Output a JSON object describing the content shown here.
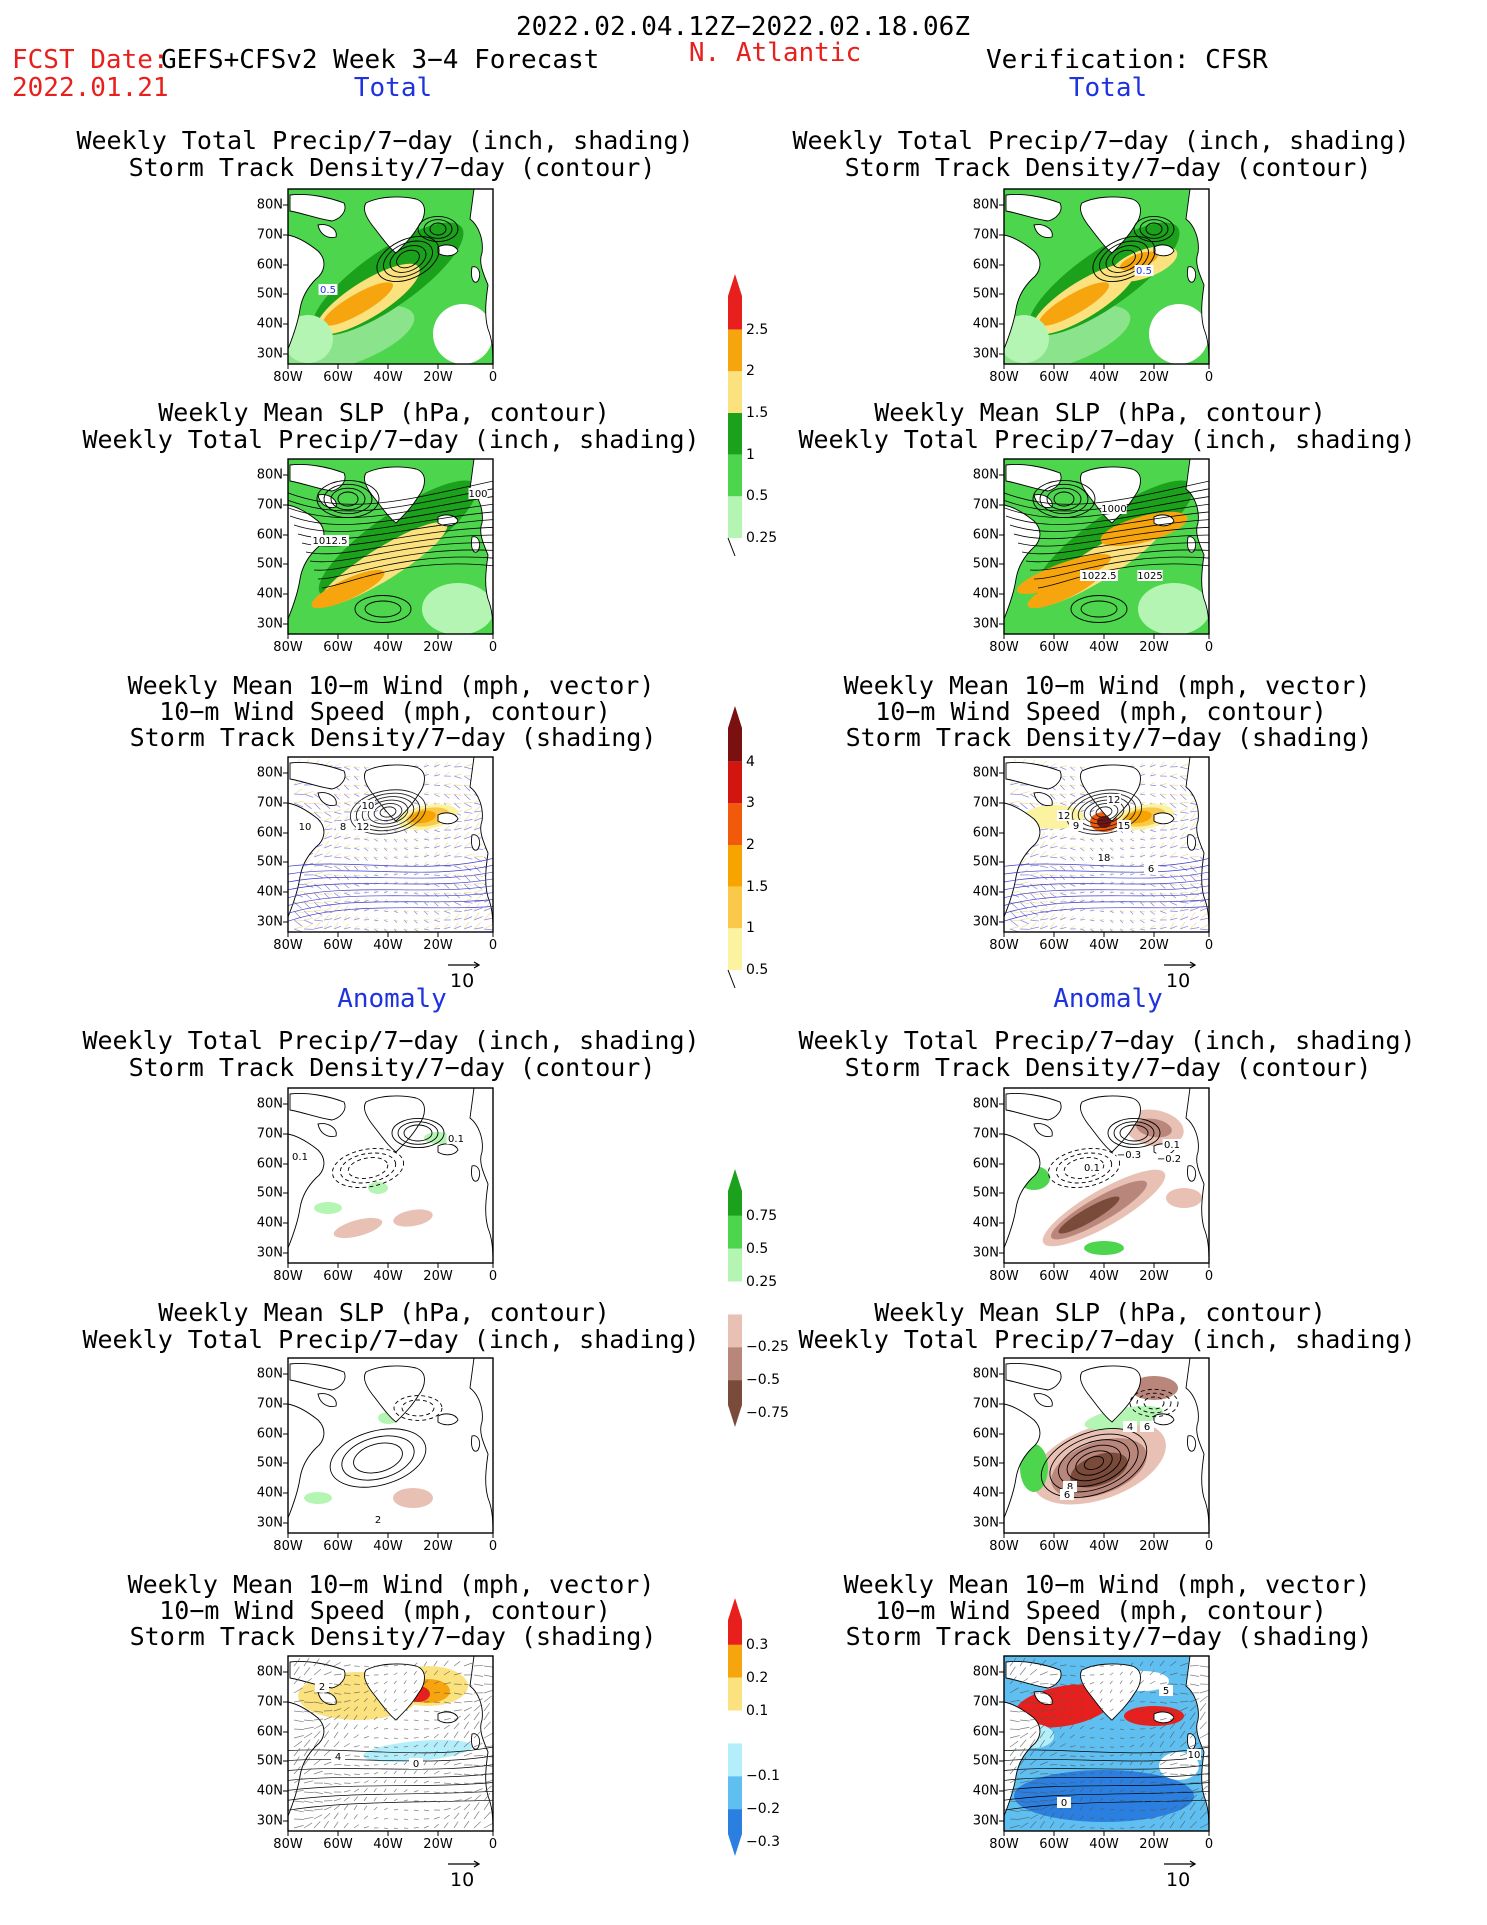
{
  "header": {
    "date_range": "2022.02.04.12Z−2022.02.18.06Z",
    "fcst_prefix": "FCST Date:",
    "model": "GEFS+CFSv2 Week 3−4 Forecast",
    "fcst_date": "2022.01.21",
    "region": "N. Atlantic",
    "verification": "Verification: CFSR"
  },
  "sections": {
    "total": "Total",
    "anomaly": "Anomaly"
  },
  "titles": {
    "precip_track": [
      "Weekly Total Precip/7−day (inch, shading)",
      "Storm Track Density/7−day (contour)"
    ],
    "slp_precip": [
      "Weekly Mean SLP (hPa, contour)",
      "Weekly Total Precip/7−day (inch, shading)"
    ],
    "wind_track": [
      "Weekly Mean 10−m Wind (mph, vector)",
      "10−m Wind Speed (mph, contour)",
      "Storm Track Density/7−day (shading)"
    ]
  },
  "axes": {
    "lat_ticks": [
      "80N",
      "70N",
      "60N",
      "50N",
      "40N",
      "30N"
    ],
    "lon_ticks": [
      "80W",
      "60W",
      "40W",
      "20W",
      "0"
    ]
  },
  "vector_ref": "10",
  "colorbars": {
    "precip_total": {
      "labels": [
        "2.5",
        "2",
        "1.5",
        "1",
        "0.5",
        "0.25"
      ],
      "colors": [
        "#e8201d",
        "#f6a50e",
        "#fbe27e",
        "#1ca11c",
        "#4dd54d",
        "#b4f5b4"
      ]
    },
    "track_total": {
      "labels": [
        "4",
        "3",
        "2",
        "1.5",
        "1",
        "0.5"
      ],
      "colors": [
        "#7a1010",
        "#d3150f",
        "#f05a0a",
        "#f7a300",
        "#fbc94a",
        "#fbf3a0"
      ]
    },
    "precip_anom": {
      "labels": [
        "0.75",
        "0.5",
        "0.25",
        "−0.25",
        "−0.5",
        "−0.75"
      ],
      "colors": [
        "#1ca11c",
        "#4dd54d",
        "#b4f5b4",
        "#ffffff",
        "#e8c1b4",
        "#b8867a",
        "#7a4a3a"
      ]
    },
    "track_anom": {
      "labels": [
        "0.3",
        "0.2",
        "0.1",
        "−0.1",
        "−0.2",
        "−0.3"
      ],
      "colors": [
        "#e8201d",
        "#f6a50e",
        "#fbe27e",
        "#ffffff",
        "#b4eefa",
        "#5fbff0",
        "#2a7fe0"
      ]
    }
  },
  "contour_labels": {
    "L_precip_total": "0.5",
    "R_precip_total": "0.5",
    "L_slp_total": [
      "1012.5",
      "100"
    ],
    "R_slp_total": [
      "1000",
      "1022.5",
      "1025"
    ],
    "L_wind_total": [
      "10",
      "12",
      "8",
      "10"
    ],
    "R_wind_total": [
      "12",
      "12",
      "9",
      "15",
      "18",
      "6"
    ],
    "L_precip_anom": [
      "0.1",
      "0.1"
    ],
    "R_precip_anom": [
      "−0.3",
      "0.1",
      "−0.2",
      "0.1"
    ],
    "L_slp_anom": [
      "2"
    ],
    "R_slp_anom": [
      "4",
      "6",
      "8",
      "6"
    ],
    "L_wind_anom": [
      "2",
      "4",
      "0"
    ],
    "R_wind_anom": [
      "5",
      "10",
      "0"
    ]
  },
  "colors": {
    "red": "#e8201d",
    "blue": "#1f32e0",
    "land": "#ffffff"
  }
}
